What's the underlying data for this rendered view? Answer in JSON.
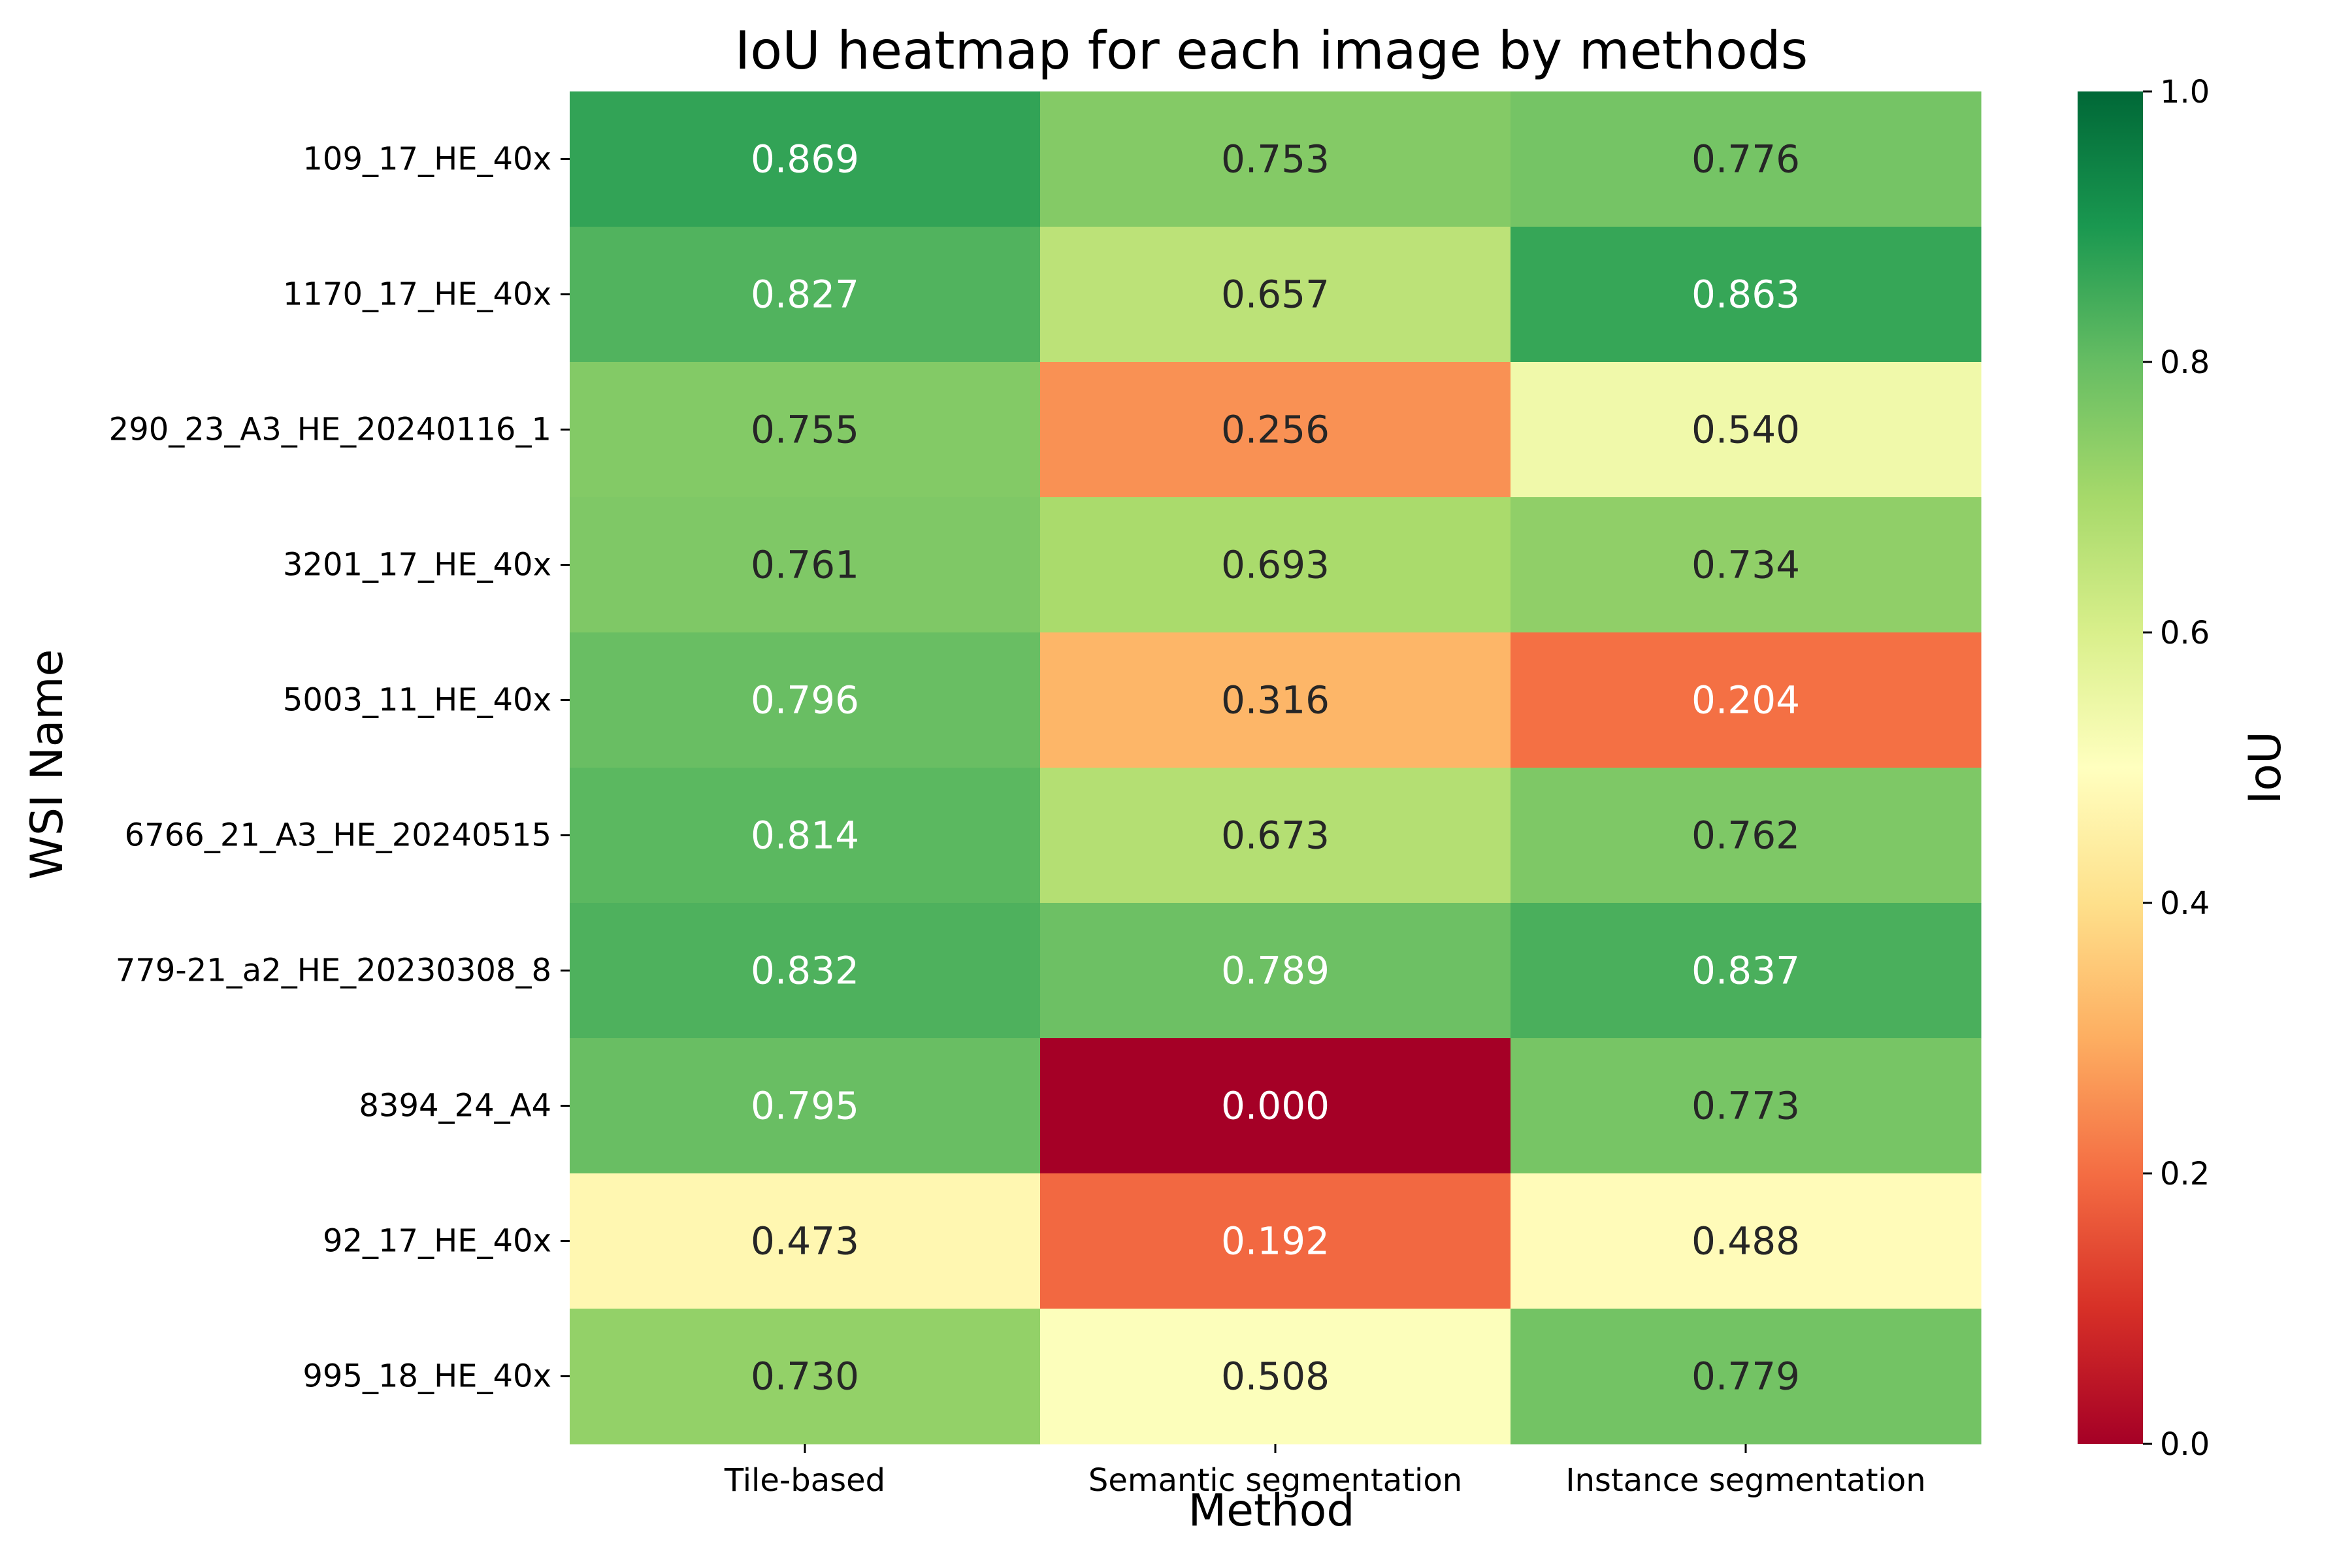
{
  "chart_data": {
    "type": "heatmap",
    "title": "IoU heatmap for each image by methods",
    "xlabel": "Method",
    "ylabel": "WSI Name",
    "columns": [
      "Tile-based",
      "Semantic segmentation",
      "Instance segmentation"
    ],
    "rows": [
      "109_17_HE_40x",
      "1170_17_HE_40x",
      "290_23_A3_HE_20240116_1",
      "3201_17_HE_40x",
      "5003_11_HE_40x",
      "6766_21_A3_HE_20240515",
      "779-21_a2_HE_20230308_8",
      "8394_24_A4",
      "92_17_HE_40x",
      "995_18_HE_40x"
    ],
    "values": [
      [
        0.869,
        0.753,
        0.776
      ],
      [
        0.827,
        0.657,
        0.863
      ],
      [
        0.755,
        0.256,
        0.54
      ],
      [
        0.761,
        0.693,
        0.734
      ],
      [
        0.796,
        0.316,
        0.204
      ],
      [
        0.814,
        0.673,
        0.762
      ],
      [
        0.832,
        0.789,
        0.837
      ],
      [
        0.795,
        0.0,
        0.773
      ],
      [
        0.473,
        0.192,
        0.488
      ],
      [
        0.73,
        0.508,
        0.779
      ]
    ],
    "value_labels": [
      [
        "0.869",
        "0.753",
        "0.776"
      ],
      [
        "0.827",
        "0.657",
        "0.863"
      ],
      [
        "0.755",
        "0.256",
        "0.540"
      ],
      [
        "0.761",
        "0.693",
        "0.734"
      ],
      [
        "0.796",
        "0.316",
        "0.204"
      ],
      [
        "0.814",
        "0.673",
        "0.762"
      ],
      [
        "0.832",
        "0.789",
        "0.837"
      ],
      [
        "0.795",
        "0.000",
        "0.773"
      ],
      [
        "0.473",
        "0.192",
        "0.488"
      ],
      [
        "0.730",
        "0.508",
        "0.779"
      ]
    ],
    "colormap": "RdYlGn",
    "vmin": 0.0,
    "vmax": 1.0,
    "colorbar": {
      "label": "IoU",
      "ticks": [
        0.0,
        0.2,
        0.4,
        0.6,
        0.8,
        1.0
      ],
      "tick_labels": [
        "0.0",
        "0.2",
        "0.4",
        "0.6",
        "0.8",
        "1.0"
      ]
    }
  },
  "colormap_stops": [
    "#a50026",
    "#d73027",
    "#f46d43",
    "#fdae61",
    "#fee08b",
    "#ffffbf",
    "#d9ef8b",
    "#a6d96a",
    "#66bd63",
    "#1a9850",
    "#006837"
  ],
  "text_colors": {
    "dark": "#262626",
    "light": "#ffffff"
  }
}
